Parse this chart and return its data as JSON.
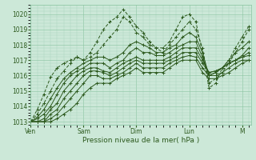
{
  "bg_color": "#cce8d8",
  "grid_major_color": "#88c4a0",
  "grid_minor_color": "#aad4bc",
  "line_color": "#2d5a1e",
  "xlabel": "Pression niveau de la mer( hPa )",
  "ylim": [
    1012.8,
    1020.6
  ],
  "yticks": [
    1013,
    1014,
    1015,
    1016,
    1017,
    1018,
    1019,
    1020
  ],
  "day_labels": [
    "Ven",
    "Sam",
    "Dim",
    "Lun",
    "M"
  ],
  "day_positions": [
    0,
    24,
    48,
    72,
    96
  ],
  "xlim": [
    0,
    100
  ],
  "series": [
    {
      "x": [
        0,
        3,
        6,
        9,
        12,
        15,
        18,
        21,
        24,
        27,
        30,
        33,
        36,
        39,
        42,
        45,
        48,
        51,
        54,
        57,
        60,
        63,
        66,
        69,
        72,
        75,
        78,
        81,
        84,
        87,
        90,
        93,
        96,
        99
      ],
      "y": [
        1013.0,
        1013.8,
        1014.8,
        1015.9,
        1016.5,
        1016.8,
        1017.0,
        1017.2,
        1017.0,
        1017.5,
        1018.2,
        1019.0,
        1019.5,
        1019.8,
        1020.3,
        1019.8,
        1019.2,
        1018.8,
        1018.2,
        1017.8,
        1017.8,
        1018.2,
        1019.0,
        1019.8,
        1020.0,
        1019.5,
        1017.5,
        1015.2,
        1015.5,
        1016.5,
        1017.0,
        1017.8,
        1018.5,
        1019.2
      ],
      "dashed": true
    },
    {
      "x": [
        0,
        3,
        6,
        9,
        12,
        15,
        18,
        21,
        24,
        27,
        30,
        33,
        36,
        39,
        42,
        45,
        48,
        51,
        54,
        57,
        60,
        63,
        66,
        69,
        72,
        75,
        78,
        81,
        84,
        87,
        90,
        93,
        96,
        99
      ],
      "y": [
        1013.0,
        1013.5,
        1014.2,
        1015.0,
        1015.8,
        1016.3,
        1016.8,
        1017.2,
        1017.0,
        1017.2,
        1017.5,
        1018.0,
        1018.5,
        1019.0,
        1019.8,
        1019.5,
        1018.8,
        1018.5,
        1018.0,
        1017.8,
        1017.5,
        1018.0,
        1018.5,
        1019.0,
        1019.5,
        1019.0,
        1017.8,
        1015.5,
        1015.8,
        1016.2,
        1016.8,
        1017.5,
        1018.2,
        1019.0
      ],
      "dashed": true
    },
    {
      "x": [
        0,
        3,
        6,
        9,
        12,
        15,
        18,
        21,
        24,
        27,
        30,
        33,
        36,
        39,
        42,
        45,
        48,
        51,
        54,
        57,
        60,
        63,
        66,
        69,
        72,
        75,
        78,
        81,
        84,
        87,
        90,
        93,
        96,
        99
      ],
      "y": [
        1013.0,
        1013.3,
        1013.8,
        1014.5,
        1015.2,
        1015.8,
        1016.2,
        1016.5,
        1016.8,
        1017.0,
        1017.2,
        1017.2,
        1017.0,
        1017.2,
        1017.5,
        1018.0,
        1018.2,
        1018.0,
        1017.8,
        1017.5,
        1017.5,
        1017.8,
        1018.0,
        1018.5,
        1018.8,
        1018.5,
        1017.5,
        1016.0,
        1016.2,
        1016.5,
        1017.0,
        1017.5,
        1017.8,
        1018.2
      ],
      "dashed": false
    },
    {
      "x": [
        0,
        3,
        6,
        9,
        12,
        15,
        18,
        21,
        24,
        27,
        30,
        33,
        36,
        39,
        42,
        45,
        48,
        51,
        54,
        57,
        60,
        63,
        66,
        69,
        72,
        75,
        78,
        81,
        84,
        87,
        90,
        93,
        96,
        99
      ],
      "y": [
        1013.0,
        1013.2,
        1013.5,
        1014.0,
        1014.8,
        1015.5,
        1016.0,
        1016.3,
        1016.5,
        1016.8,
        1016.8,
        1016.8,
        1016.5,
        1016.8,
        1017.0,
        1017.5,
        1017.8,
        1017.5,
        1017.5,
        1017.3,
        1017.3,
        1017.5,
        1017.8,
        1018.0,
        1018.2,
        1018.2,
        1017.2,
        1016.0,
        1016.2,
        1016.5,
        1016.8,
        1017.0,
        1017.3,
        1017.8
      ],
      "dashed": false
    },
    {
      "x": [
        0,
        3,
        6,
        9,
        12,
        15,
        18,
        21,
        24,
        27,
        30,
        33,
        36,
        39,
        42,
        45,
        48,
        51,
        54,
        57,
        60,
        63,
        66,
        69,
        72,
        75,
        78,
        81,
        84,
        87,
        90,
        93,
        96,
        99
      ],
      "y": [
        1013.0,
        1013.0,
        1013.2,
        1013.8,
        1014.2,
        1015.0,
        1015.5,
        1016.0,
        1016.3,
        1016.5,
        1016.5,
        1016.3,
        1016.2,
        1016.5,
        1016.8,
        1017.0,
        1017.2,
        1017.0,
        1017.0,
        1017.0,
        1017.0,
        1017.2,
        1017.5,
        1017.8,
        1017.8,
        1017.8,
        1017.0,
        1016.2,
        1016.3,
        1016.5,
        1016.8,
        1017.0,
        1017.2,
        1017.5
      ],
      "dashed": false
    },
    {
      "x": [
        0,
        3,
        6,
        9,
        12,
        15,
        18,
        21,
        24,
        27,
        30,
        33,
        36,
        39,
        42,
        45,
        48,
        51,
        54,
        57,
        60,
        63,
        66,
        69,
        72,
        75,
        78,
        81,
        84,
        87,
        90,
        93,
        96,
        99
      ],
      "y": [
        1013.0,
        1013.0,
        1013.0,
        1013.5,
        1013.8,
        1014.5,
        1015.0,
        1015.5,
        1016.0,
        1016.3,
        1016.3,
        1016.2,
        1016.0,
        1016.2,
        1016.5,
        1016.8,
        1017.0,
        1016.8,
        1016.8,
        1016.8,
        1016.8,
        1017.0,
        1017.2,
        1017.5,
        1017.5,
        1017.5,
        1016.8,
        1016.2,
        1016.3,
        1016.5,
        1016.8,
        1017.0,
        1017.2,
        1017.3
      ],
      "dashed": false
    },
    {
      "x": [
        0,
        3,
        6,
        9,
        12,
        15,
        18,
        21,
        24,
        27,
        30,
        33,
        36,
        39,
        42,
        45,
        48,
        51,
        54,
        57,
        60,
        63,
        66,
        69,
        72,
        75,
        78,
        81,
        84,
        87,
        90,
        93,
        96,
        99
      ],
      "y": [
        1013.0,
        1013.0,
        1013.0,
        1013.2,
        1013.5,
        1014.0,
        1014.5,
        1015.0,
        1015.5,
        1016.0,
        1016.0,
        1015.8,
        1015.8,
        1016.0,
        1016.2,
        1016.5,
        1016.8,
        1016.5,
        1016.5,
        1016.5,
        1016.5,
        1016.8,
        1017.0,
        1017.2,
        1017.3,
        1017.2,
        1016.5,
        1016.0,
        1016.0,
        1016.2,
        1016.5,
        1016.8,
        1017.0,
        1017.0
      ],
      "dashed": false
    },
    {
      "x": [
        0,
        3,
        6,
        9,
        12,
        15,
        18,
        21,
        24,
        27,
        30,
        33,
        36,
        39,
        42,
        45,
        48,
        51,
        54,
        57,
        60,
        63,
        66,
        69,
        72,
        75,
        78,
        81,
        84,
        87,
        90,
        93,
        96,
        99
      ],
      "y": [
        1013.0,
        1013.0,
        1013.0,
        1013.0,
        1013.2,
        1013.5,
        1013.8,
        1014.2,
        1014.8,
        1015.2,
        1015.5,
        1015.5,
        1015.5,
        1015.8,
        1016.0,
        1016.2,
        1016.5,
        1016.2,
        1016.2,
        1016.2,
        1016.2,
        1016.5,
        1016.8,
        1017.0,
        1017.0,
        1017.0,
        1016.2,
        1015.8,
        1015.8,
        1016.0,
        1016.2,
        1016.5,
        1016.8,
        1017.0
      ],
      "dashed": false
    }
  ]
}
